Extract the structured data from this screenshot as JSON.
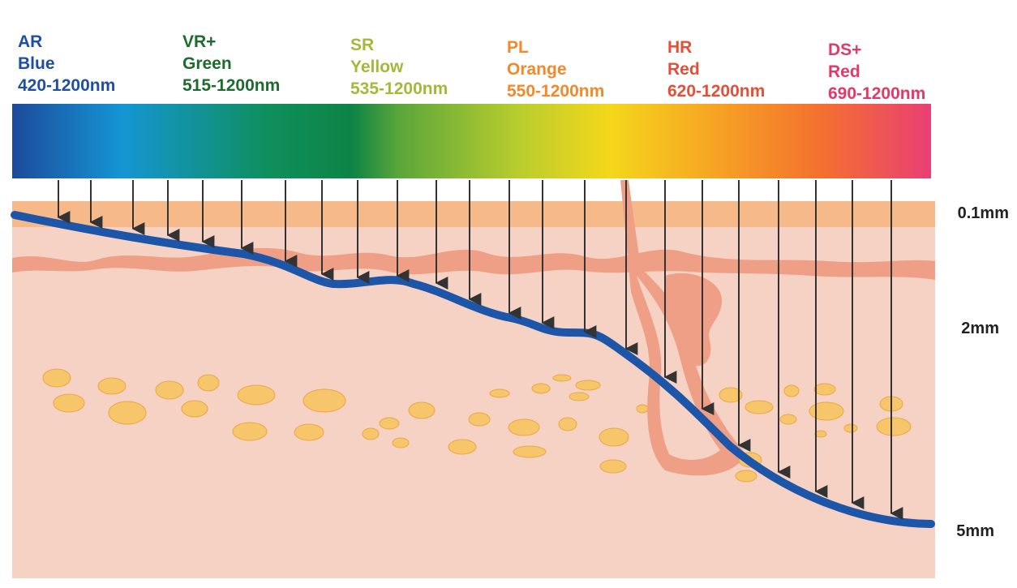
{
  "filters": [
    {
      "code": "AR",
      "color_name": "Blue",
      "range": "420-1200nm",
      "text_color": "#1f4fa0"
    },
    {
      "code": "VR+",
      "color_name": "Green",
      "range": "515-1200nm",
      "text_color": "#1e6b2e"
    },
    {
      "code": "SR",
      "color_name": "Yellow",
      "range": "535-1200nm",
      "text_color": "#a6b83a"
    },
    {
      "code": "PL",
      "color_name": "Orange",
      "range": "550-1200nm",
      "text_color": "#f08a2a"
    },
    {
      "code": "HR",
      "color_name": "Red",
      "range": "620-1200nm",
      "text_color": "#e2503a"
    },
    {
      "code": "DS+",
      "color_name": "Red",
      "range": "690-1200nm",
      "text_color": "#e03a6a"
    }
  ],
  "depths": [
    {
      "label": "0.1mm"
    },
    {
      "label": "2mm"
    },
    {
      "label": "5mm"
    }
  ],
  "colors": {
    "spectrum": [
      "#1c4a9c",
      "#1596d4",
      "#0f8f5c",
      "#0d8446",
      "#5aa63a",
      "#b8cc2e",
      "#f4d71a",
      "#f6a124",
      "#f3702e",
      "#ea3f74"
    ],
    "epidermis": "#f5b98a",
    "dermis": "#f6d2c4",
    "tissue": "#ee9f86",
    "fat": "#f7c56a",
    "penetration_line": "#1d56a8",
    "arrow": "#333333"
  }
}
